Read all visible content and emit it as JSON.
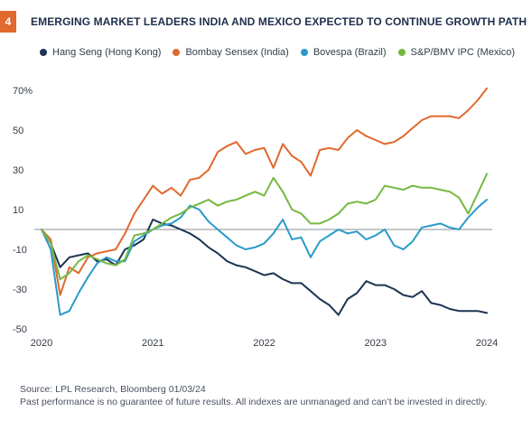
{
  "figure": {
    "number": "4",
    "title": "EMERGING MARKET LEADERS INDIA AND MEXICO EXPECTED TO CONTINUE GROWTH PATH",
    "source": "Source: LPL Research, Bloomberg 01/03/24",
    "disclaimer": "Past performance is no guarantee of future results. All indexes are unmanaged and can’t be invested in directly.",
    "accent_color": "#e0692e"
  },
  "chart_data": {
    "type": "line",
    "title": "EMERGING MARKET LEADERS INDIA AND MEXICO EXPECTED TO CONTINUE GROWTH PATH",
    "xlabel": "",
    "ylabel": "",
    "x_ticks": [
      "2020",
      "2021",
      "2022",
      "2023",
      "2024"
    ],
    "y_ticks": [
      "70%",
      "50",
      "30",
      "10",
      "-10",
      "-30",
      "-50"
    ],
    "ylim": [
      -50,
      70
    ],
    "xlim": [
      2020.0,
      2024.0
    ],
    "grid": false,
    "zero_line": true,
    "legend_position": "top",
    "x": [
      2020.0,
      2020.083,
      2020.167,
      2020.25,
      2020.333,
      2020.417,
      2020.5,
      2020.583,
      2020.667,
      2020.75,
      2020.833,
      2020.917,
      2021.0,
      2021.083,
      2021.167,
      2021.25,
      2021.333,
      2021.417,
      2021.5,
      2021.583,
      2021.667,
      2021.75,
      2021.833,
      2021.917,
      2022.0,
      2022.083,
      2022.167,
      2022.25,
      2022.333,
      2022.417,
      2022.5,
      2022.583,
      2022.667,
      2022.75,
      2022.833,
      2022.917,
      2023.0,
      2023.083,
      2023.167,
      2023.25,
      2023.333,
      2023.417,
      2023.5,
      2023.583,
      2023.667,
      2023.75,
      2023.833,
      2023.917,
      2024.0
    ],
    "series": [
      {
        "name": "Hang Seng (Hong Kong)",
        "color": "#1c3553",
        "values": [
          0,
          -7,
          -19,
          -14,
          -13,
          -12,
          -16,
          -15,
          -18,
          -10,
          -8,
          -5,
          5,
          3,
          2,
          0,
          -2,
          -5,
          -9,
          -12,
          -16,
          -18,
          -19,
          -21,
          -23,
          -22,
          -25,
          -27,
          -27,
          -31,
          -35,
          -38,
          -43,
          -35,
          -32,
          -26,
          -28,
          -28,
          -30,
          -33,
          -34,
          -31,
          -37,
          -38,
          -40,
          -41,
          -41,
          -41,
          -42
        ]
      },
      {
        "name": "Bombay Sensex (India)",
        "color": "#e0692e",
        "values": [
          0,
          -5,
          -33,
          -19,
          -22,
          -14,
          -12,
          -11,
          -10,
          -2,
          8,
          15,
          22,
          18,
          21,
          17,
          25,
          26,
          30,
          39,
          42,
          44,
          38,
          40,
          41,
          31,
          43,
          37,
          34,
          27,
          40,
          41,
          40,
          46,
          50,
          47,
          45,
          43,
          44,
          47,
          51,
          55,
          57,
          57,
          57,
          56,
          60,
          65,
          71
        ]
      },
      {
        "name": "Bovespa (Brazil)",
        "color": "#2a9bc9",
        "values": [
          0,
          -10,
          -43,
          -41,
          -32,
          -24,
          -17,
          -14,
          -16,
          -16,
          -6,
          -3,
          0,
          2,
          3,
          6,
          12,
          10,
          4,
          0,
          -4,
          -8,
          -10,
          -9,
          -7,
          -2,
          5,
          -5,
          -4,
          -14,
          -6,
          -3,
          0,
          -2,
          -1,
          -5,
          -3,
          0,
          -8,
          -10,
          -6,
          1,
          2,
          3,
          1,
          0,
          6,
          11,
          15
        ]
      },
      {
        "name": "S&P/BMV IPC (Mexico)",
        "color": "#76b942",
        "values": [
          0,
          -7,
          -25,
          -22,
          -16,
          -13,
          -15,
          -17,
          -18,
          -15,
          -3,
          -2,
          0,
          3,
          6,
          8,
          11,
          13,
          15,
          12,
          14,
          15,
          17,
          19,
          17,
          26,
          19,
          10,
          8,
          3,
          3,
          5,
          8,
          13,
          14,
          13,
          15,
          22,
          21,
          20,
          22,
          21,
          21,
          20,
          19,
          16,
          8,
          18,
          28
        ]
      }
    ]
  }
}
